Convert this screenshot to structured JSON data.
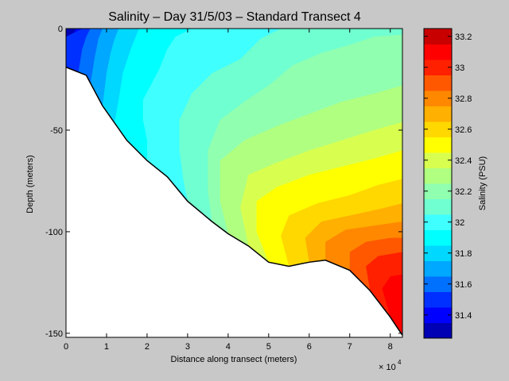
{
  "chart_data": {
    "type": "heatmap",
    "title": "Salinity – Day 31/5/03 – Standard Transect 4",
    "xlabel": "Distance along transect (meters)",
    "ylabel": "Depth (meters)",
    "x_multiplier_label": "× 10",
    "x_multiplier_exp": "4",
    "x_scale": 10000,
    "xlim": [
      0,
      83000
    ],
    "ylim": [
      -152,
      0
    ],
    "x_ticks": [
      0,
      10000,
      20000,
      30000,
      40000,
      50000,
      60000,
      70000,
      80000
    ],
    "x_tick_labels": [
      "0",
      "1",
      "2",
      "3",
      "4",
      "5",
      "6",
      "7",
      "8"
    ],
    "y_ticks": [
      0,
      -50,
      -100,
      -150
    ],
    "y_tick_labels": [
      "0",
      "-50",
      "-100",
      "-150"
    ],
    "colorbar": {
      "label": "Salinity (PSU)",
      "range": [
        31.25,
        33.25
      ],
      "ticks": [
        31.4,
        31.6,
        31.8,
        32,
        32.2,
        32.4,
        32.6,
        32.8,
        33,
        33.2
      ],
      "tick_labels": [
        "31.4",
        "31.6",
        "31.8",
        "32",
        "32.2",
        "32.4",
        "32.6",
        "32.8",
        "33",
        "33.2"
      ],
      "levels": [
        31.25,
        31.35,
        31.45,
        31.55,
        31.65,
        31.75,
        31.85,
        31.95,
        32.05,
        32.15,
        32.25,
        32.35,
        32.45,
        32.55,
        32.65,
        32.75,
        32.85,
        32.95,
        33.05,
        33.15,
        33.25
      ],
      "colors": [
        "#0000b4",
        "#0000ff",
        "#0030ff",
        "#0070ff",
        "#00a8ff",
        "#00d8ff",
        "#00ffff",
        "#40ffff",
        "#70ffd0",
        "#90ffb0",
        "#b0ff80",
        "#d8ff50",
        "#ffff00",
        "#ffd800",
        "#ffb000",
        "#ff8800",
        "#ff5800",
        "#ff2000",
        "#ff0000",
        "#c80000"
      ]
    },
    "bottom_profile": [
      [
        0,
        -19
      ],
      [
        5000,
        -23
      ],
      [
        9000,
        -38
      ],
      [
        15000,
        -55
      ],
      [
        20000,
        -65
      ],
      [
        25000,
        -73
      ],
      [
        30000,
        -85
      ],
      [
        36000,
        -95
      ],
      [
        40000,
        -101
      ],
      [
        45000,
        -107
      ],
      [
        50000,
        -115
      ],
      [
        55000,
        -117
      ],
      [
        60000,
        -115
      ],
      [
        64000,
        -114
      ],
      [
        70000,
        -119
      ],
      [
        75000,
        -129
      ],
      [
        80000,
        -142
      ],
      [
        83000,
        -151
      ]
    ],
    "isohalines": [
      {
        "value": 31.35,
        "points": [
          [
            0,
            -19
          ],
          [
            0,
            -9
          ],
          [
            1000,
            -5
          ],
          [
            2000,
            -2
          ],
          [
            2500,
            0
          ]
        ]
      },
      {
        "value": 31.45,
        "points": [
          [
            0,
            -4
          ],
          [
            2000,
            -2
          ],
          [
            4000,
            0
          ]
        ]
      },
      {
        "value": 31.55,
        "points": [
          [
            3000,
            -22
          ],
          [
            4000,
            -10
          ],
          [
            5000,
            -4
          ],
          [
            6000,
            0
          ]
        ]
      },
      {
        "value": 31.65,
        "points": [
          [
            6000,
            -28
          ],
          [
            7000,
            -15
          ],
          [
            8000,
            -5
          ],
          [
            9000,
            0
          ]
        ]
      },
      {
        "value": 31.75,
        "points": [
          [
            9000,
            -38
          ],
          [
            10000,
            -22
          ],
          [
            11000,
            -12
          ],
          [
            12000,
            -5
          ],
          [
            13000,
            0
          ]
        ]
      },
      {
        "value": 31.85,
        "points": [
          [
            12000,
            -46
          ],
          [
            13000,
            -35
          ],
          [
            14000,
            -22
          ],
          [
            16000,
            -10
          ],
          [
            18000,
            0
          ]
        ]
      },
      {
        "value": 31.95,
        "points": [
          [
            20000,
            -65
          ],
          [
            20000,
            -55
          ],
          [
            19000,
            -45
          ],
          [
            19000,
            -35
          ],
          [
            23000,
            -20
          ],
          [
            25000,
            -10
          ],
          [
            27000,
            -4
          ],
          [
            31000,
            0
          ]
        ]
      },
      {
        "value": 32.05,
        "points": [
          [
            30000,
            -85
          ],
          [
            29000,
            -75
          ],
          [
            28000,
            -60
          ],
          [
            28000,
            -45
          ],
          [
            31000,
            -32
          ],
          [
            36000,
            -22
          ],
          [
            43000,
            -15
          ],
          [
            48000,
            -5
          ],
          [
            53000,
            0
          ]
        ]
      },
      {
        "value": 32.15,
        "points": [
          [
            36000,
            -95
          ],
          [
            35000,
            -80
          ],
          [
            35000,
            -60
          ],
          [
            38000,
            -45
          ],
          [
            44000,
            -36
          ],
          [
            50000,
            -28
          ],
          [
            56000,
            -18
          ],
          [
            63000,
            -12
          ],
          [
            70000,
            -8
          ],
          [
            76000,
            -4
          ],
          [
            83000,
            -3
          ]
        ]
      },
      {
        "value": 32.25,
        "points": [
          [
            40000,
            -101
          ],
          [
            38000,
            -85
          ],
          [
            38000,
            -65
          ],
          [
            44000,
            -55
          ],
          [
            52000,
            -48
          ],
          [
            60000,
            -42
          ],
          [
            68000,
            -36
          ],
          [
            76000,
            -32
          ],
          [
            83000,
            -28
          ]
        ]
      },
      {
        "value": 32.35,
        "points": [
          [
            45000,
            -107
          ],
          [
            43000,
            -88
          ],
          [
            45000,
            -72
          ],
          [
            52000,
            -66
          ],
          [
            60000,
            -60
          ],
          [
            68000,
            -55
          ],
          [
            76000,
            -50
          ],
          [
            83000,
            -46
          ]
        ]
      },
      {
        "value": 32.45,
        "points": [
          [
            50000,
            -115
          ],
          [
            47000,
            -100
          ],
          [
            47000,
            -85
          ],
          [
            52000,
            -78
          ],
          [
            60000,
            -72
          ],
          [
            68000,
            -68
          ],
          [
            76000,
            -64
          ],
          [
            83000,
            -60
          ]
        ]
      },
      {
        "value": 32.55,
        "points": [
          [
            55000,
            -117
          ],
          [
            53000,
            -102
          ],
          [
            55000,
            -92
          ],
          [
            62000,
            -86
          ],
          [
            70000,
            -82
          ],
          [
            77000,
            -77
          ],
          [
            83000,
            -74
          ]
        ]
      },
      {
        "value": 32.65,
        "points": [
          [
            60000,
            -115
          ],
          [
            59000,
            -103
          ],
          [
            63000,
            -95
          ],
          [
            70000,
            -92
          ],
          [
            77000,
            -89
          ],
          [
            83000,
            -86
          ]
        ]
      },
      {
        "value": 32.75,
        "points": [
          [
            64000,
            -114
          ],
          [
            64000,
            -105
          ],
          [
            69000,
            -99
          ],
          [
            76000,
            -97
          ],
          [
            83000,
            -95
          ]
        ]
      },
      {
        "value": 32.85,
        "points": [
          [
            70000,
            -119
          ],
          [
            70000,
            -110
          ],
          [
            74000,
            -105
          ],
          [
            80000,
            -103
          ],
          [
            83000,
            -103
          ]
        ]
      },
      {
        "value": 32.95,
        "points": [
          [
            75000,
            -129
          ],
          [
            74000,
            -117
          ],
          [
            77000,
            -112
          ],
          [
            83000,
            -110
          ]
        ]
      },
      {
        "value": 33.05,
        "points": [
          [
            80000,
            -142
          ],
          [
            78000,
            -128
          ],
          [
            80000,
            -122
          ],
          [
            83000,
            -121
          ]
        ]
      }
    ]
  }
}
